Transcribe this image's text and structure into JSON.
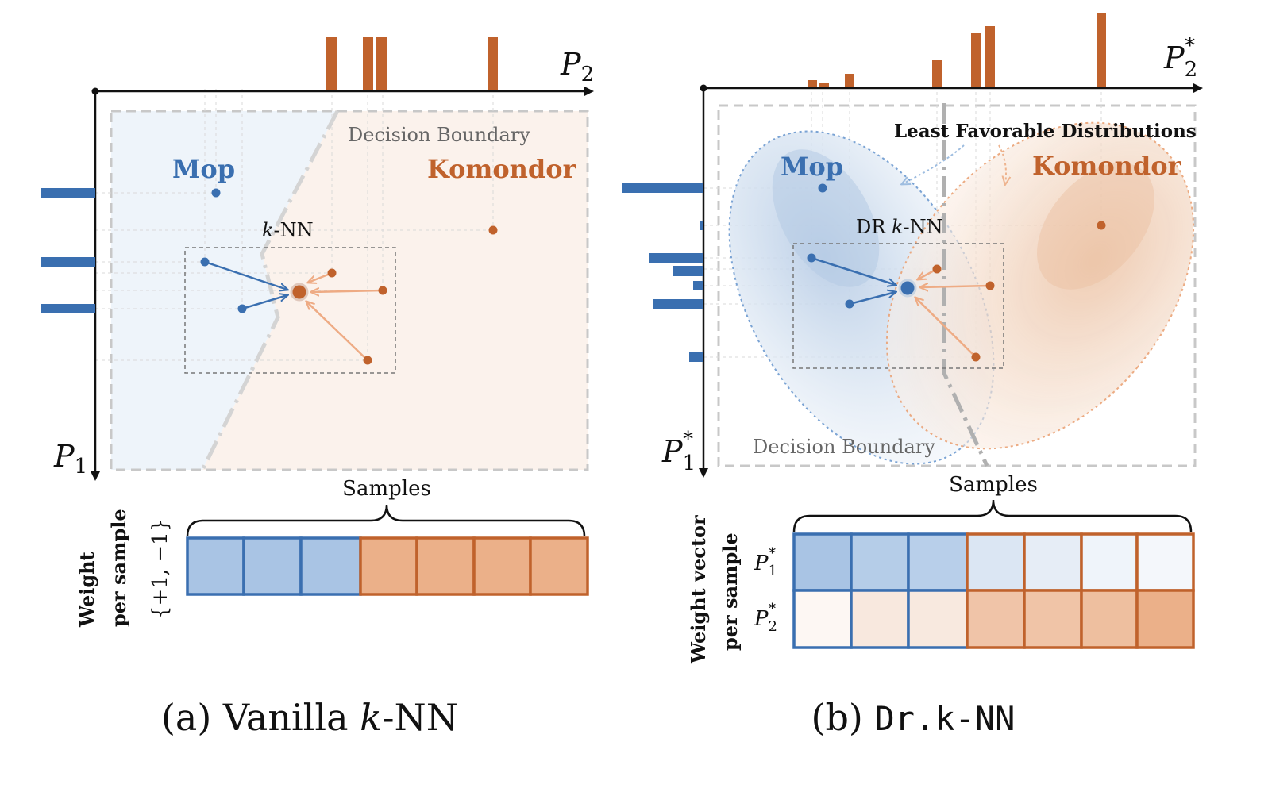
{
  "colors": {
    "blue": "#3a6fb0",
    "orange": "#c0622c",
    "blue_light": "#a9c4e4",
    "orange_light": "#ebb089",
    "blue_region": "#eef4fa",
    "orange_region": "#fbf2ec",
    "grey_dash": "#c8c8c8",
    "boundary_grey": "#d6d6d6"
  },
  "panel_a": {
    "axis_x_label": "P",
    "axis_x_sub": "2",
    "axis_y_label": "P",
    "axis_y_sub": "1",
    "class_blue": "Mop",
    "class_orange": "Komondor",
    "boundary_label": "Decision Boundary",
    "knn_label_k": "k",
    "knn_label_rest": "-NN",
    "samples_label": "Samples",
    "weight_label_line1": "Weight",
    "weight_label_line2": "per sample",
    "weight_values": "{+1, −1}",
    "caption_prefix": "(a) Vanilla ",
    "caption_k": "k",
    "caption_rest": "-NN"
  },
  "panel_b": {
    "axis_x_label": "P",
    "axis_x_sub": "2",
    "axis_x_sup": "*",
    "axis_y_label": "P",
    "axis_y_sub": "1",
    "axis_y_sup": "*",
    "class_blue": "Mop",
    "class_orange": "Komondor",
    "boundary_label": "Decision Boundary",
    "lfd_label": "Least Favorable Distributions",
    "knn_label_prefix": "DR ",
    "knn_label_k": "k",
    "knn_label_rest": "-NN",
    "samples_label": "Samples",
    "weight_label_line1": "Weight vector",
    "weight_label_line2": "per sample",
    "row1_label": "P",
    "row1_sub": "1",
    "row1_sup": "*",
    "row2_label": "P",
    "row2_sub": "2",
    "row2_sup": "*",
    "caption_prefix": "(b) ",
    "caption_mono": "Dr.k-NN"
  }
}
